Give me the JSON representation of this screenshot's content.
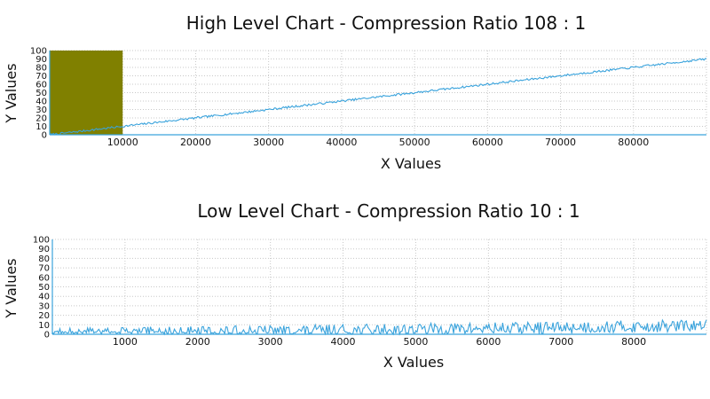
{
  "colors": {
    "series": "#3aa3dc",
    "overview_window": "#808000",
    "grid": "#c8c8c8",
    "axis": "#3aa3dc"
  },
  "chart_data": [
    {
      "type": "line",
      "title": "High Level Chart - Compression Ratio 108 : 1",
      "xlabel": "X Values",
      "ylabel": "Y Values",
      "xlim": [
        0,
        90000
      ],
      "ylim": [
        0,
        100
      ],
      "x_ticks": [
        10000,
        20000,
        30000,
        40000,
        50000,
        60000,
        70000,
        80000
      ],
      "x_tick_labels": [
        "10000",
        "20000",
        "30000",
        "40000",
        "50000",
        "60000",
        "70000",
        "80000"
      ],
      "y_ticks": [
        0,
        10,
        20,
        30,
        40,
        50,
        60,
        70,
        80,
        90,
        100
      ],
      "y_tick_labels": [
        "0",
        "10",
        "20",
        "30",
        "40",
        "50",
        "60",
        "70",
        "80",
        "90",
        "100"
      ],
      "grid": true,
      "highlight_range": [
        0,
        10000
      ],
      "series": [
        {
          "x": [
            0,
            10000,
            20000,
            30000,
            40000,
            50000,
            60000,
            70000,
            80000,
            90000
          ],
          "values": [
            0,
            10,
            20,
            30,
            40,
            50,
            60,
            70,
            80,
            90
          ]
        }
      ]
    },
    {
      "type": "line",
      "title": "Low Level Chart - Compression Ratio 10 : 1",
      "xlabel": "X Values",
      "ylabel": "Y Values",
      "xlim": [
        0,
        9000
      ],
      "ylim": [
        0,
        100
      ],
      "x_ticks": [
        1000,
        2000,
        3000,
        4000,
        5000,
        6000,
        7000,
        8000
      ],
      "x_tick_labels": [
        "1000",
        "2000",
        "3000",
        "4000",
        "5000",
        "6000",
        "7000",
        "8000"
      ],
      "y_ticks": [
        0,
        10,
        20,
        30,
        40,
        50,
        60,
        70,
        80,
        90,
        100
      ],
      "y_tick_labels": [
        "0",
        "10",
        "20",
        "30",
        "40",
        "50",
        "60",
        "70",
        "80",
        "90",
        "100"
      ],
      "grid": true,
      "series": [
        {
          "x": [
            0,
            1000,
            2000,
            3000,
            4000,
            5000,
            6000,
            7000,
            8000,
            9000
          ],
          "values": [
            0,
            1,
            2,
            3,
            4,
            5,
            6,
            7,
            8,
            9
          ]
        }
      ]
    }
  ]
}
